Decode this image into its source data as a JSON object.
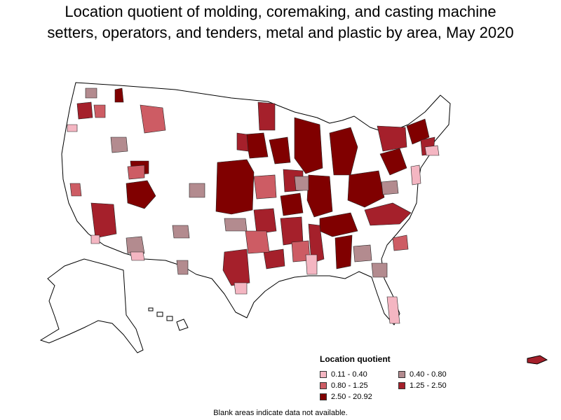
{
  "title": {
    "line1": "Location quotient of molding, coremaking, and casting machine",
    "line2": "setters, operators, and tenders, metal and plastic by area, May 2020"
  },
  "legend": {
    "title": "Location quotient",
    "items": [
      {
        "label": "0.11 - 0.40",
        "color": "#f4b6c2"
      },
      {
        "label": "0.40 - 0.80",
        "color": "#b38b8f"
      },
      {
        "label": "0.80 - 1.25",
        "color": "#cd5c64"
      },
      {
        "label": "1.25 - 2.50",
        "color": "#a5202b"
      },
      {
        "label": "2.50 - 20.92",
        "color": "#800000"
      }
    ]
  },
  "footnote": "Blank areas indicate data not available."
}
